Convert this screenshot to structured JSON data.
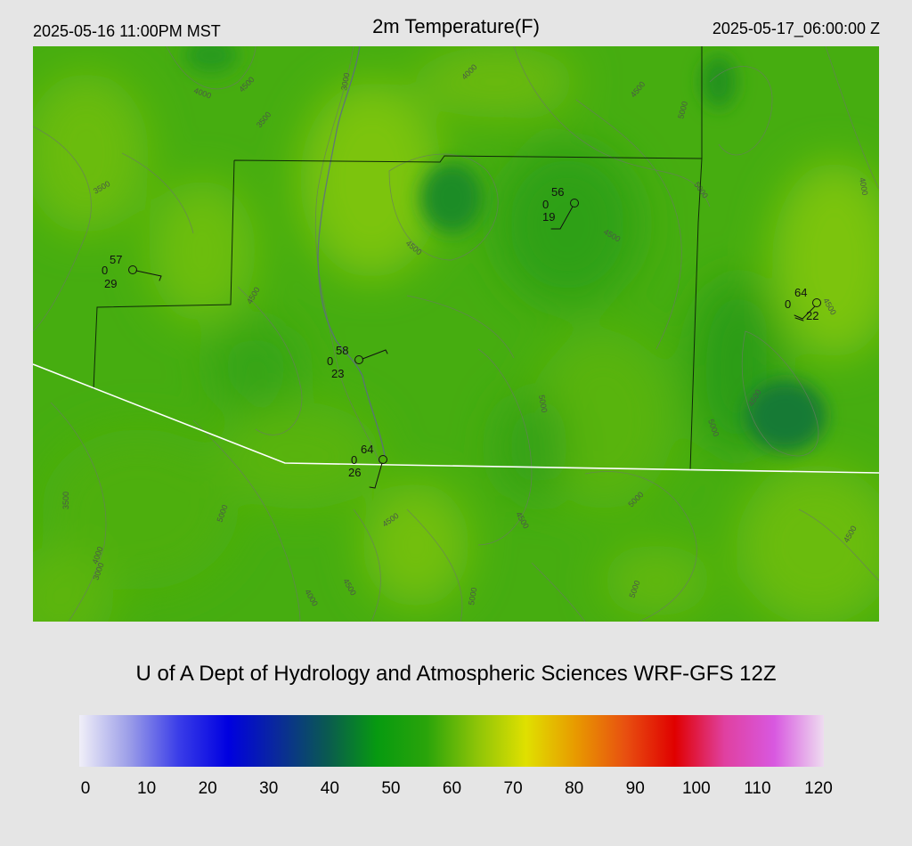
{
  "header": {
    "local_time": "2025-05-16 11:00PM MST",
    "title": "2m Temperature(F)",
    "valid_time": "2025-05-17_06:00:00 Z"
  },
  "map": {
    "contour_labels": [
      "3000",
      "4000",
      "4500",
      "3500",
      "4000",
      "4500",
      "5000",
      "5000",
      "4500",
      "3500",
      "4500",
      "4500",
      "5000",
      "5000",
      "4000",
      "4500",
      "3500",
      "4000",
      "4500",
      "5000",
      "4500",
      "5000",
      "4500",
      "3000",
      "4000",
      "4500",
      "4500",
      "5000",
      "5000"
    ],
    "stations": [
      {
        "temp": "57",
        "precip": "0",
        "dewpoint": "29"
      },
      {
        "temp": "56",
        "precip": "0",
        "dewpoint": "19"
      },
      {
        "temp": "58",
        "precip": "0",
        "dewpoint": "23"
      },
      {
        "temp": "64",
        "precip": "0",
        "dewpoint": "26"
      },
      {
        "temp": "64",
        "precip": "0",
        "dewpoint": "22"
      }
    ]
  },
  "credit": "U of A Dept of Hydrology and Atmospheric Sciences WRF-GFS 12Z",
  "colorbar": {
    "ticks": [
      "0",
      "10",
      "20",
      "30",
      "40",
      "50",
      "60",
      "70",
      "80",
      "90",
      "100",
      "110",
      "120"
    ],
    "colors": [
      "#f0eff8",
      "#9c9ee8",
      "#3a3de8",
      "#0000e0",
      "#0a2a9a",
      "#0a5a50",
      "#079a10",
      "#2aa40a",
      "#8cc408",
      "#e0e000",
      "#e89a00",
      "#e85010",
      "#e00000",
      "#e040a0",
      "#d858e0",
      "#eedcf0"
    ]
  }
}
